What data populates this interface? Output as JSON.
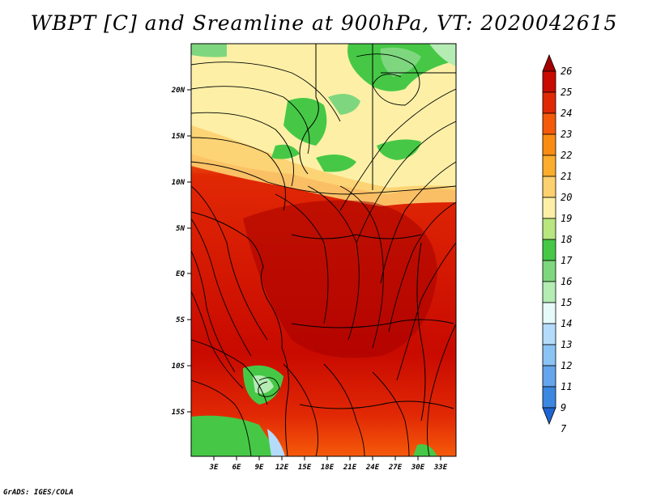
{
  "title": "WBPT [C] and Sreamline at 900hPa, VT: 2020042615",
  "footer": "GrADS: IGES/COLA",
  "lat_labels": [
    "20N",
    "15N",
    "10N",
    "5N",
    "EQ",
    "5S",
    "10S",
    "15S"
  ],
  "lon_labels": [
    "3E",
    "6E",
    "9E",
    "12E",
    "15E",
    "18E",
    "21E",
    "24E",
    "27E",
    "30E",
    "33E"
  ],
  "colorbar": {
    "labels": [
      "26",
      "25",
      "24",
      "23",
      "22",
      "21",
      "20",
      "19",
      "18",
      "17",
      "16",
      "15",
      "14",
      "13",
      "12",
      "11",
      "9",
      "7"
    ],
    "colors": [
      "#a50000",
      "#c80a00",
      "#e12805",
      "#f55a0a",
      "#fa8c14",
      "#fcad2d",
      "#fdd070",
      "#fdf0a6",
      "#b9e67f",
      "#46c846",
      "#7ed77e",
      "#b4ecb4",
      "#e6fafa",
      "#b4dcfa",
      "#8cc3f5",
      "#64a5eb",
      "#3c87e1",
      "#1e64d2"
    ]
  }
}
